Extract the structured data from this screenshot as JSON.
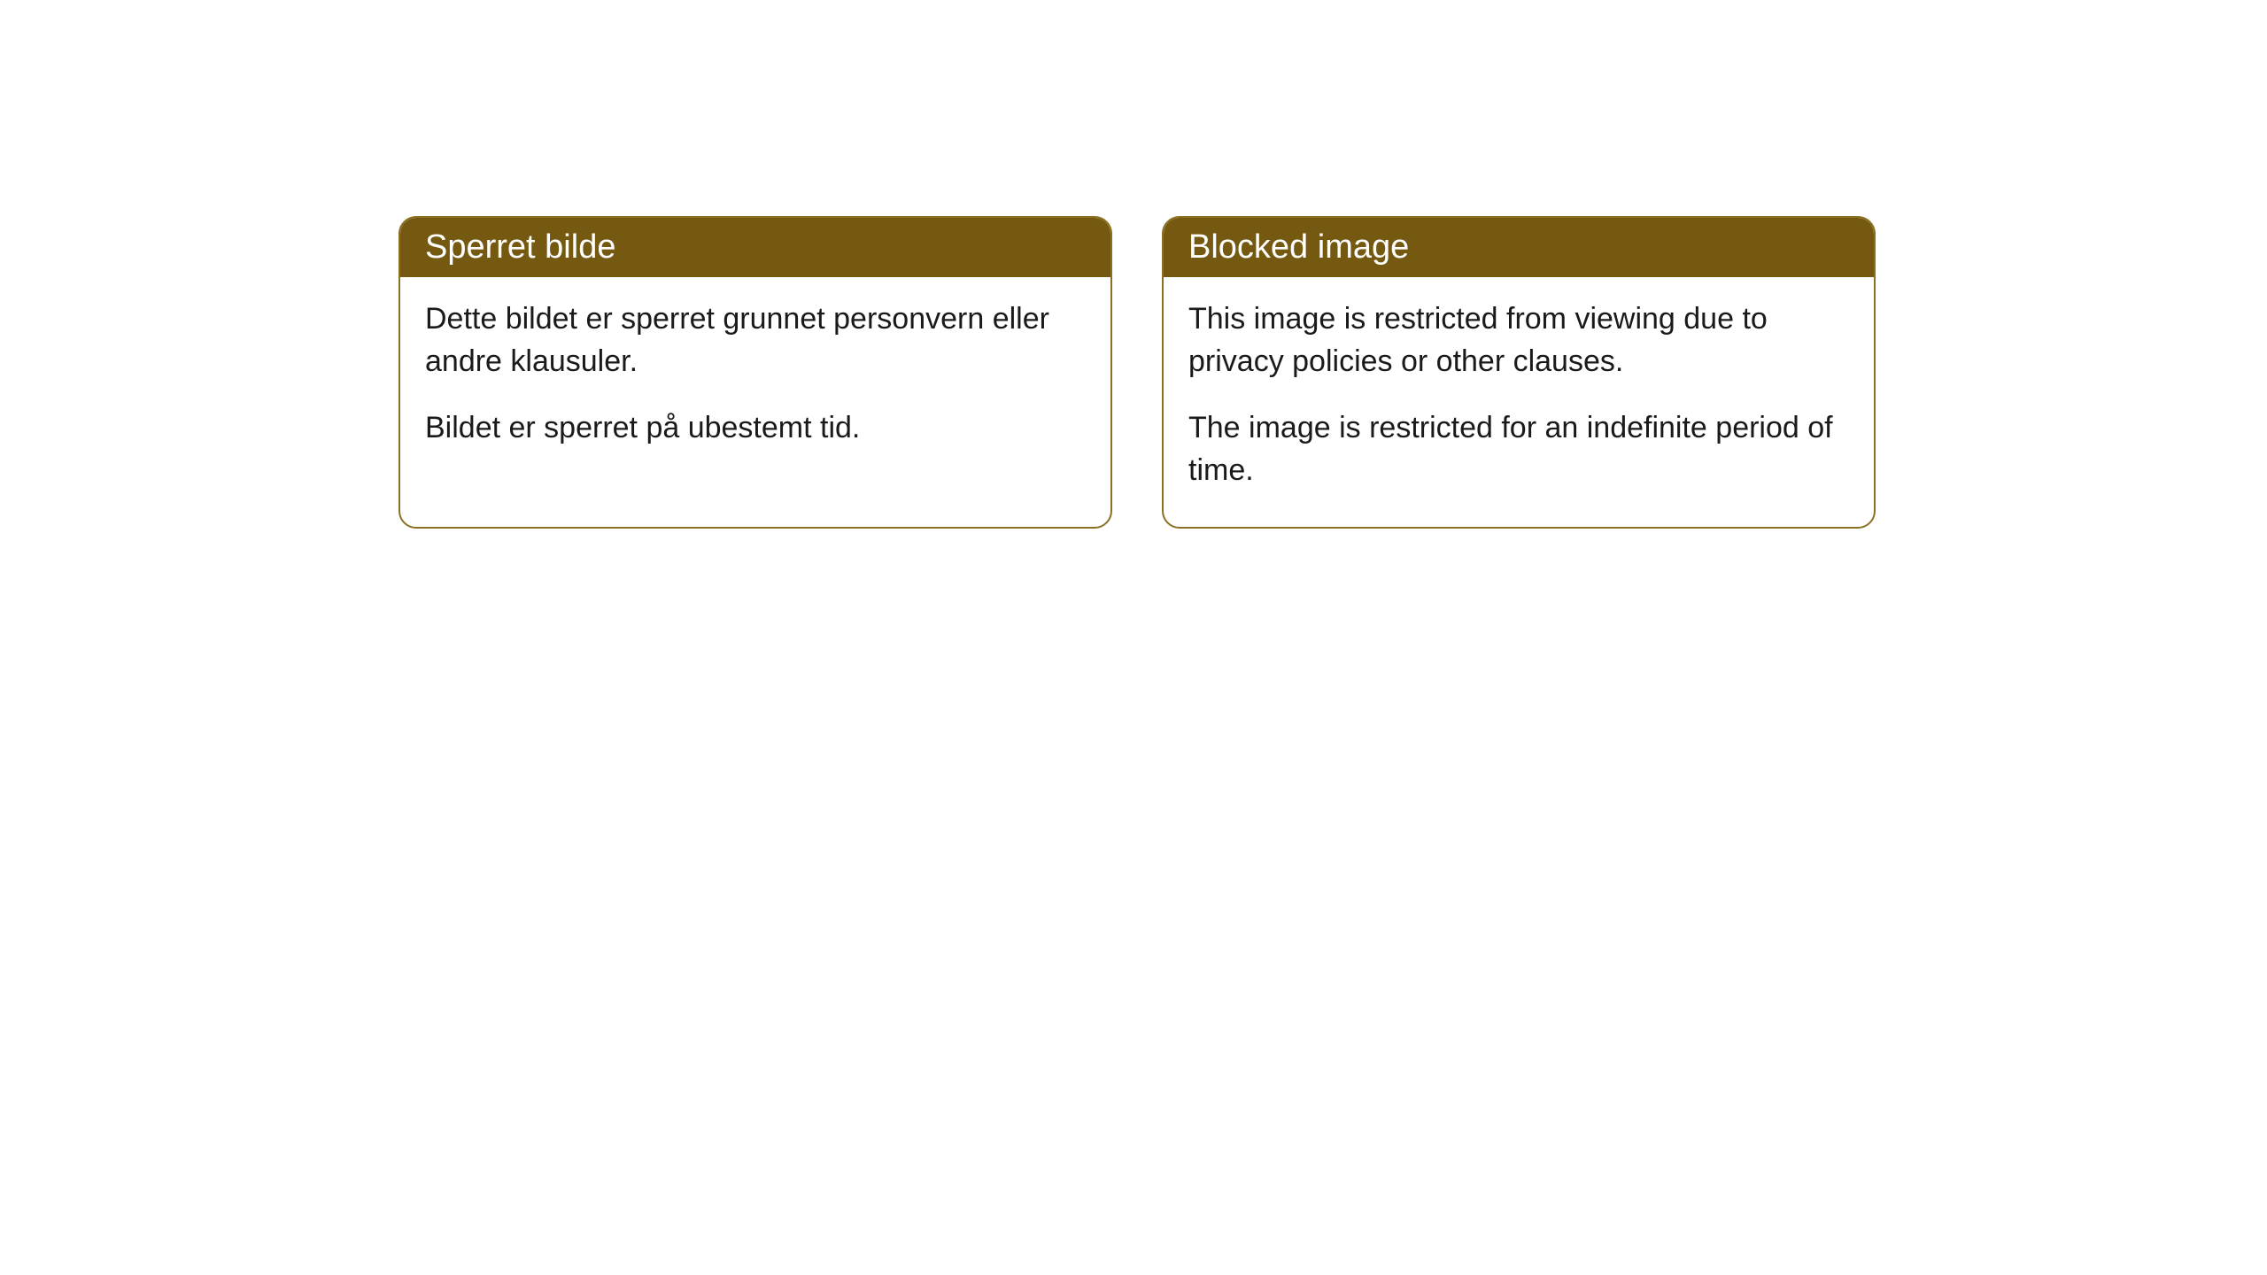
{
  "cards": [
    {
      "title": "Sperret bilde",
      "paragraph1": "Dette bildet er sperret grunnet personvern eller andre klausuler.",
      "paragraph2": "Bildet er sperret på ubestemt tid."
    },
    {
      "title": "Blocked image",
      "paragraph1": "This image is restricted from viewing due to privacy policies or other clauses.",
      "paragraph2": "The image is restricted for an indefinite period of time."
    }
  ],
  "styling": {
    "header_bg_color": "#765911",
    "header_text_color": "#ffffff",
    "border_color": "#8a7020",
    "card_bg_color": "#ffffff",
    "body_text_color": "#1a1a1a",
    "page_bg_color": "#ffffff",
    "border_radius": 20,
    "title_fontsize": 38,
    "body_fontsize": 34
  }
}
